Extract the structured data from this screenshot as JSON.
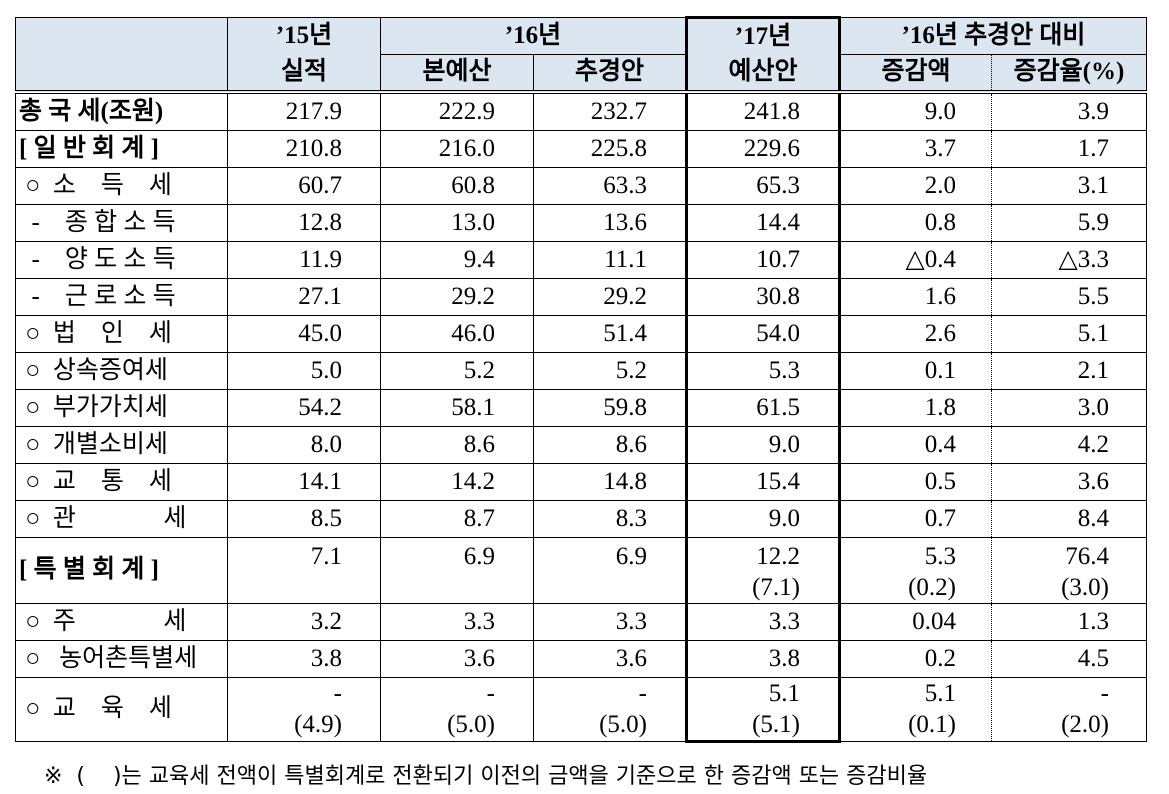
{
  "header": {
    "col_label": "",
    "y15_top": "’15년",
    "y15_bottom": "실적",
    "y16_group": "’16년",
    "y16_base": "본예산",
    "y16_supp": "추경안",
    "y17_top": "’17년",
    "y17_bottom": "예산안",
    "cmp_group": "’16년 추경안 대비",
    "cmp_amount": "증감액",
    "cmp_rate": "증감율(%)"
  },
  "rows": [
    {
      "label": "총 국 세(조원)",
      "bold": true,
      "y15": "217.9",
      "y16_base": "222.9",
      "y16_supp": "232.7",
      "y17": "241.8",
      "diff": "9.0",
      "rate": "3.9"
    },
    {
      "label": "[ 일 반 회 계 ]",
      "bold": true,
      "y15": "210.8",
      "y16_base": "216.0",
      "y16_supp": "225.8",
      "y17": "229.6",
      "diff": "3.7",
      "rate": "1.7"
    },
    {
      "label": " ○  소    득    세",
      "y15": "60.7",
      "y16_base": "60.8",
      "y16_supp": "63.3",
      "y17": "65.3",
      "diff": "2.0",
      "rate": "3.1"
    },
    {
      "label": "  -    종 합 소 득",
      "y15": "12.8",
      "y16_base": "13.0",
      "y16_supp": "13.6",
      "y17": "14.4",
      "diff": "0.8",
      "rate": "5.9"
    },
    {
      "label": "  -    양 도 소 득",
      "y15": "11.9",
      "y16_base": "9.4",
      "y16_supp": "11.1",
      "y17": "10.7",
      "diff": "△0.4",
      "rate": "△3.3"
    },
    {
      "label": "  -    근 로 소 득",
      "y15": "27.1",
      "y16_base": "29.2",
      "y16_supp": "29.2",
      "y17": "30.8",
      "diff": "1.6",
      "rate": "5.5"
    },
    {
      "label": " ○  법    인    세",
      "y15": "45.0",
      "y16_base": "46.0",
      "y16_supp": "51.4",
      "y17": "54.0",
      "diff": "2.6",
      "rate": "5.1"
    },
    {
      "label": " ○  상속증여세",
      "y15": "5.0",
      "y16_base": "5.2",
      "y16_supp": "5.2",
      "y17": "5.3",
      "diff": "0.1",
      "rate": "2.1"
    },
    {
      "label": " ○  부가가치세",
      "y15": "54.2",
      "y16_base": "58.1",
      "y16_supp": "59.8",
      "y17": "61.5",
      "diff": "1.8",
      "rate": "3.0"
    },
    {
      "label": " ○  개별소비세",
      "y15": "8.0",
      "y16_base": "8.6",
      "y16_supp": "8.6",
      "y17": "9.0",
      "diff": "0.4",
      "rate": "4.2"
    },
    {
      "label": " ○  교    통    세",
      "y15": "14.1",
      "y16_base": "14.2",
      "y16_supp": "14.8",
      "y17": "15.4",
      "diff": "0.5",
      "rate": "3.6"
    },
    {
      "label": " ○  관              세",
      "y15": "8.5",
      "y16_base": "8.7",
      "y16_supp": "8.3",
      "y17": "9.0",
      "diff": "0.7",
      "rate": "8.4"
    }
  ],
  "special": {
    "label": "[ 특 별 회 계 ]",
    "y15": "7.1",
    "y16_base": "6.9",
    "y16_supp": "6.9",
    "y17": "12.2",
    "y17_sub": "(7.1)",
    "diff": "5.3",
    "diff_sub": "(0.2)",
    "rate": "76.4",
    "rate_sub": "(3.0)"
  },
  "rows2": [
    {
      "label": " ○  주              세",
      "y15": "3.2",
      "y16_base": "3.3",
      "y16_supp": "3.3",
      "y17": "3.3",
      "diff": "0.04",
      "rate": "1.3"
    },
    {
      "label": " ○   농어촌특별세",
      "y15": "3.8",
      "y16_base": "3.6",
      "y16_supp": "3.6",
      "y17": "3.8",
      "diff": "0.2",
      "rate": "4.5"
    }
  ],
  "edu": {
    "label": " ○  교    육    세",
    "y15": "-",
    "y15_sub": "(4.9)",
    "y16_base": "-",
    "y16_base_sub": "(5.0)",
    "y16_supp": "-",
    "y16_supp_sub": "(5.0)",
    "y17": "5.1",
    "y17_sub": "(5.1)",
    "diff": "5.1",
    "diff_sub": "(0.1)",
    "rate": "-",
    "rate_sub": "(2.0)"
  },
  "footnote": "※  (    )는 교육세 전액이 특별회계로 전환되기 이전의 금액을 기준으로 한 증감액 또는 증감비율",
  "colors": {
    "header_bg": "#dce6f1",
    "border": "#000000"
  }
}
